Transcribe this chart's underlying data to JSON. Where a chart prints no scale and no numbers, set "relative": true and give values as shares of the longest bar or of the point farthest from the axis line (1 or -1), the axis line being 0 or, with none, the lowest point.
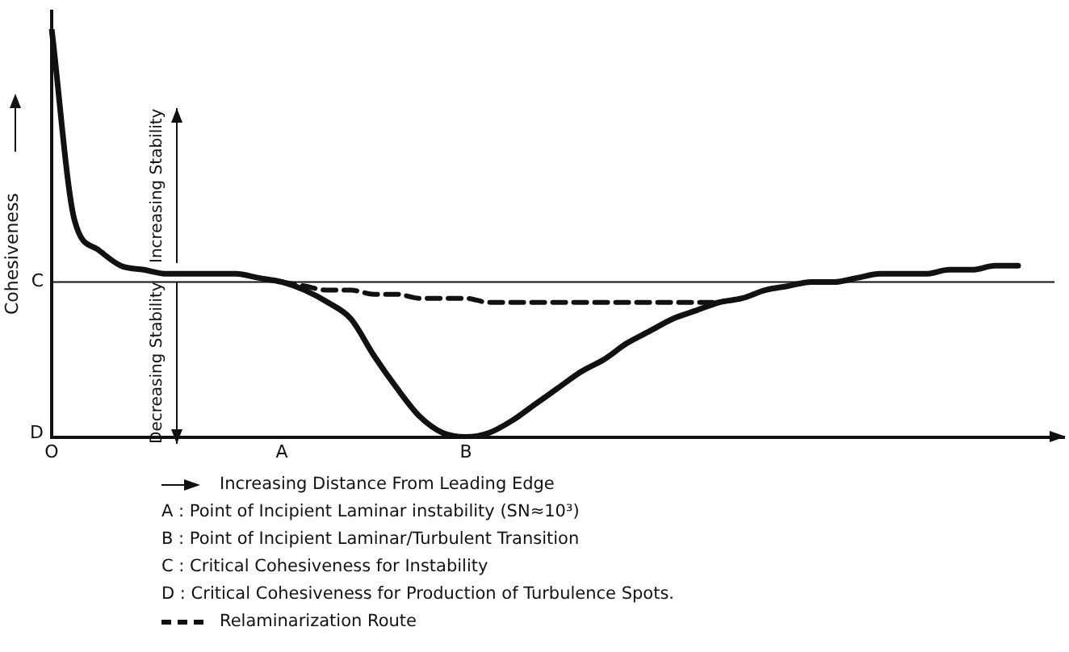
{
  "chart_data": {
    "type": "line",
    "relative": true,
    "ylabel": "Cohesiveness",
    "categories": [
      "O",
      null,
      null,
      null,
      null,
      null,
      null,
      null,
      null,
      null,
      "A",
      null,
      null,
      null,
      null,
      null,
      null,
      null,
      "B",
      null,
      null,
      null,
      null,
      null,
      null,
      null,
      null,
      null,
      null,
      null,
      null,
      null,
      null,
      null,
      null,
      null,
      null,
      null,
      null,
      null,
      null,
      null,
      null,
      null,
      null
    ],
    "series": [
      {
        "color": "#111111",
        "line_style": "solid",
        "values": [
          1.0,
          0.53,
          0.46,
          0.42,
          0.41,
          0.4,
          0.4,
          0.4,
          0.4,
          0.39,
          0.38,
          0.36,
          0.33,
          0.29,
          0.2,
          0.12,
          0.05,
          0.01,
          0,
          0.01,
          0.04,
          0.08,
          0.12,
          0.16,
          0.19,
          0.23,
          0.26,
          0.29,
          0.31,
          0.33,
          0.34,
          0.36,
          0.37,
          0.38,
          0.38,
          0.39,
          0.4,
          0.4,
          0.4,
          0.41,
          0.41,
          0.42,
          0.42,
          null,
          null
        ]
      },
      {
        "name": "Relaminarization Route",
        "color": "#111111",
        "line_style": "dashed",
        "values": [
          null,
          null,
          null,
          null,
          null,
          null,
          null,
          null,
          null,
          null,
          0.38,
          0.37,
          0.36,
          0.36,
          0.35,
          0.35,
          0.34,
          0.34,
          0.34,
          0.33,
          0.33,
          0.33,
          0.33,
          0.33,
          0.33,
          0.33,
          0.33,
          0.33,
          0.33,
          0.33,
          null,
          null,
          null,
          null,
          null,
          null,
          null,
          null,
          null,
          null,
          null,
          null,
          null,
          null,
          null
        ]
      }
    ],
    "ref_lines": [
      {
        "axis": "y",
        "value": 0.38,
        "label": "C",
        "color": "#111111"
      }
    ],
    "annotations": [
      "Increasing Stability",
      "Decreasing Stability",
      "Increasing Distance From Leading Edge",
      "A  :  Point of Incipient Laminar instability (SN≈10³)",
      "B  :  Point of Incipient Laminar/Turbulent Transition",
      "C  :  Critical Cohesiveness for Instability",
      "D  :  Critical Cohesiveness for Production of Turbulence Spots.",
      "D"
    ],
    "legend": "bottom",
    "marker": "none",
    "grid": false
  }
}
